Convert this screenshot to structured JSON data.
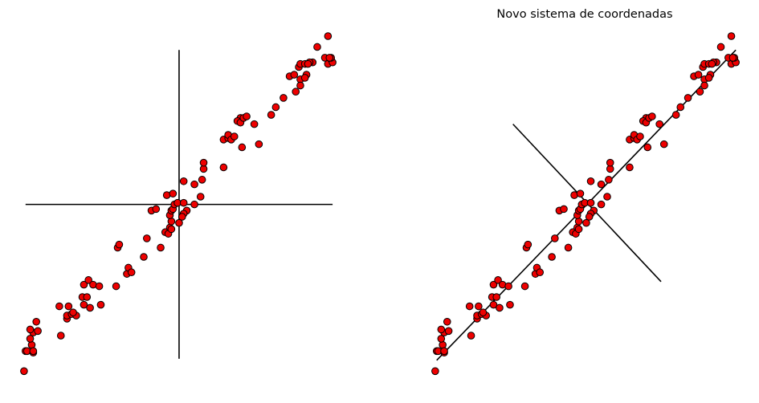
{
  "colors": {
    "point_fill": "#ee0000",
    "point_edge": "#000000",
    "axis_line": "#000000"
  },
  "chart_data": [
    {
      "type": "scatter",
      "title": "",
      "axes_visible": false,
      "grid": false,
      "xlim": [
        -10.2,
        10.1
      ],
      "ylim": [
        -11.2,
        10.9
      ],
      "lines": [
        {
          "x": [
            -10.0,
            10.0
          ],
          "y": [
            0.0,
            0.0
          ]
        },
        {
          "x": [
            0.0,
            0.0
          ],
          "y": [
            -10.0,
            10.0
          ]
        }
      ],
      "points": [
        [
          -10.1,
          -10.8
        ],
        [
          -10.0,
          -9.5
        ],
        [
          -9.9,
          -9.5
        ],
        [
          -9.6,
          -9.1
        ],
        [
          -9.5,
          -9.6
        ],
        [
          -9.5,
          -9.5
        ],
        [
          -9.7,
          -8.7
        ],
        [
          -9.5,
          -8.3
        ],
        [
          -9.7,
          -8.1
        ],
        [
          -9.2,
          -8.2
        ],
        [
          -9.3,
          -7.6
        ],
        [
          -7.7,
          -8.5
        ],
        [
          -7.8,
          -6.6
        ],
        [
          -7.3,
          -7.4
        ],
        [
          -7.3,
          -7.2
        ],
        [
          -7.2,
          -6.6
        ],
        [
          -7.0,
          -7.1
        ],
        [
          -6.7,
          -7.2
        ],
        [
          -6.9,
          -7.0
        ],
        [
          -6.3,
          -6.0
        ],
        [
          -6.2,
          -6.5
        ],
        [
          -6.0,
          -6.0
        ],
        [
          -5.8,
          -6.7
        ],
        [
          -6.2,
          -5.2
        ],
        [
          -5.9,
          -4.9
        ],
        [
          -5.6,
          -5.2
        ],
        [
          -5.2,
          -5.3
        ],
        [
          -5.1,
          -6.5
        ],
        [
          -4.1,
          -5.3
        ],
        [
          -4.0,
          -2.8
        ],
        [
          -3.9,
          -2.6
        ],
        [
          -3.4,
          -4.5
        ],
        [
          -3.3,
          -4.1
        ],
        [
          -3.1,
          -4.4
        ],
        [
          -2.3,
          -3.4
        ],
        [
          -2.1,
          -2.2
        ],
        [
          -1.8,
          -0.4
        ],
        [
          -1.5,
          -0.3
        ],
        [
          -1.2,
          -2.8
        ],
        [
          -0.9,
          -1.8
        ],
        [
          -0.7,
          -1.9
        ],
        [
          -0.6,
          -1.5
        ],
        [
          -0.5,
          -1.6
        ],
        [
          -0.5,
          -1.1
        ],
        [
          -0.6,
          -0.7
        ],
        [
          -0.5,
          -0.4
        ],
        [
          -0.4,
          -0.3
        ],
        [
          -0.3,
          0.0
        ],
        [
          -0.1,
          0.1
        ],
        [
          0.3,
          0.1
        ],
        [
          0.5,
          -0.4
        ],
        [
          0.3,
          -0.6
        ],
        [
          0.2,
          -0.8
        ],
        [
          0.0,
          -1.2
        ],
        [
          -0.8,
          0.6
        ],
        [
          -0.4,
          0.7
        ],
        [
          0.3,
          1.5
        ],
        [
          1.0,
          0.0
        ],
        [
          1.4,
          0.5
        ],
        [
          1.0,
          1.3
        ],
        [
          1.5,
          1.6
        ],
        [
          1.6,
          2.3
        ],
        [
          1.6,
          2.7
        ],
        [
          2.9,
          2.4
        ],
        [
          2.9,
          4.2
        ],
        [
          3.2,
          4.3
        ],
        [
          3.2,
          4.5
        ],
        [
          3.4,
          4.2
        ],
        [
          3.6,
          4.4
        ],
        [
          4.1,
          3.7
        ],
        [
          4.0,
          5.6
        ],
        [
          3.8,
          5.4
        ],
        [
          4.0,
          5.3
        ],
        [
          4.2,
          5.6
        ],
        [
          4.4,
          5.7
        ],
        [
          4.9,
          5.2
        ],
        [
          5.2,
          3.9
        ],
        [
          6.0,
          5.8
        ],
        [
          6.3,
          6.3
        ],
        [
          6.8,
          6.9
        ],
        [
          7.2,
          8.3
        ],
        [
          7.6,
          7.3
        ],
        [
          7.9,
          8.1
        ],
        [
          7.9,
          7.7
        ],
        [
          7.8,
          8.9
        ],
        [
          7.9,
          9.1
        ],
        [
          8.2,
          9.1
        ],
        [
          7.5,
          8.4
        ],
        [
          8.3,
          8.4
        ],
        [
          8.2,
          8.2
        ],
        [
          8.7,
          9.2
        ],
        [
          8.5,
          9.2
        ],
        [
          8.4,
          9.1
        ],
        [
          9.0,
          10.2
        ],
        [
          9.5,
          9.5
        ],
        [
          9.7,
          9.1
        ],
        [
          9.9,
          9.4
        ],
        [
          10.0,
          9.2
        ],
        [
          9.9,
          9.5
        ],
        [
          9.7,
          10.9
        ],
        [
          9.8,
          9.5
        ]
      ]
    },
    {
      "type": "scatter",
      "title": "Novo sistema de coordenadas",
      "axes_visible": false,
      "grid": false,
      "xlim": [
        -10.2,
        10.1
      ],
      "ylim": [
        -11.2,
        10.9
      ],
      "lines": [
        {
          "x": [
            -10.0,
            10.0
          ],
          "y": [
            -10.1,
            10.0
          ]
        },
        {
          "x": [
            -4.9,
            5.0
          ],
          "y": [
            5.2,
            -5.0
          ]
        }
      ],
      "points": [
        [
          -10.1,
          -10.8
        ],
        [
          -10.0,
          -9.5
        ],
        [
          -9.9,
          -9.5
        ],
        [
          -9.6,
          -9.1
        ],
        [
          -9.5,
          -9.6
        ],
        [
          -9.5,
          -9.5
        ],
        [
          -9.7,
          -8.7
        ],
        [
          -9.5,
          -8.3
        ],
        [
          -9.7,
          -8.1
        ],
        [
          -9.2,
          -8.2
        ],
        [
          -9.3,
          -7.6
        ],
        [
          -7.7,
          -8.5
        ],
        [
          -7.8,
          -6.6
        ],
        [
          -7.3,
          -7.4
        ],
        [
          -7.3,
          -7.2
        ],
        [
          -7.2,
          -6.6
        ],
        [
          -7.0,
          -7.1
        ],
        [
          -6.7,
          -7.2
        ],
        [
          -6.9,
          -7.0
        ],
        [
          -6.3,
          -6.0
        ],
        [
          -6.2,
          -6.5
        ],
        [
          -6.0,
          -6.0
        ],
        [
          -5.8,
          -6.7
        ],
        [
          -6.2,
          -5.2
        ],
        [
          -5.9,
          -4.9
        ],
        [
          -5.6,
          -5.2
        ],
        [
          -5.2,
          -5.3
        ],
        [
          -5.1,
          -6.5
        ],
        [
          -4.1,
          -5.3
        ],
        [
          -4.0,
          -2.8
        ],
        [
          -3.9,
          -2.6
        ],
        [
          -3.4,
          -4.5
        ],
        [
          -3.3,
          -4.1
        ],
        [
          -3.1,
          -4.4
        ],
        [
          -2.3,
          -3.4
        ],
        [
          -2.1,
          -2.2
        ],
        [
          -1.8,
          -0.4
        ],
        [
          -1.5,
          -0.3
        ],
        [
          -1.2,
          -2.8
        ],
        [
          -0.9,
          -1.8
        ],
        [
          -0.7,
          -1.9
        ],
        [
          -0.6,
          -1.5
        ],
        [
          -0.5,
          -1.6
        ],
        [
          -0.5,
          -1.1
        ],
        [
          -0.6,
          -0.7
        ],
        [
          -0.5,
          -0.4
        ],
        [
          -0.4,
          -0.3
        ],
        [
          -0.3,
          0.0
        ],
        [
          -0.1,
          0.1
        ],
        [
          0.3,
          0.1
        ],
        [
          0.5,
          -0.4
        ],
        [
          0.3,
          -0.6
        ],
        [
          0.2,
          -0.8
        ],
        [
          0.0,
          -1.2
        ],
        [
          -0.8,
          0.6
        ],
        [
          -0.4,
          0.7
        ],
        [
          0.3,
          1.5
        ],
        [
          1.0,
          0.0
        ],
        [
          1.4,
          0.5
        ],
        [
          1.0,
          1.3
        ],
        [
          1.5,
          1.6
        ],
        [
          1.6,
          2.3
        ],
        [
          1.6,
          2.7
        ],
        [
          2.9,
          2.4
        ],
        [
          2.9,
          4.2
        ],
        [
          3.2,
          4.3
        ],
        [
          3.2,
          4.5
        ],
        [
          3.4,
          4.2
        ],
        [
          3.6,
          4.4
        ],
        [
          4.1,
          3.7
        ],
        [
          4.0,
          5.6
        ],
        [
          3.8,
          5.4
        ],
        [
          4.0,
          5.3
        ],
        [
          4.2,
          5.6
        ],
        [
          4.4,
          5.7
        ],
        [
          4.9,
          5.2
        ],
        [
          5.2,
          3.9
        ],
        [
          6.0,
          5.8
        ],
        [
          6.3,
          6.3
        ],
        [
          6.8,
          6.9
        ],
        [
          7.2,
          8.3
        ],
        [
          7.6,
          7.3
        ],
        [
          7.9,
          8.1
        ],
        [
          7.9,
          7.7
        ],
        [
          7.8,
          8.9
        ],
        [
          7.9,
          9.1
        ],
        [
          8.2,
          9.1
        ],
        [
          7.5,
          8.4
        ],
        [
          8.3,
          8.4
        ],
        [
          8.2,
          8.2
        ],
        [
          8.7,
          9.2
        ],
        [
          8.5,
          9.2
        ],
        [
          8.4,
          9.1
        ],
        [
          9.0,
          10.2
        ],
        [
          9.5,
          9.5
        ],
        [
          9.7,
          9.1
        ],
        [
          9.9,
          9.4
        ],
        [
          10.0,
          9.2
        ],
        [
          9.9,
          9.5
        ],
        [
          9.7,
          10.9
        ],
        [
          9.8,
          9.5
        ]
      ]
    }
  ]
}
